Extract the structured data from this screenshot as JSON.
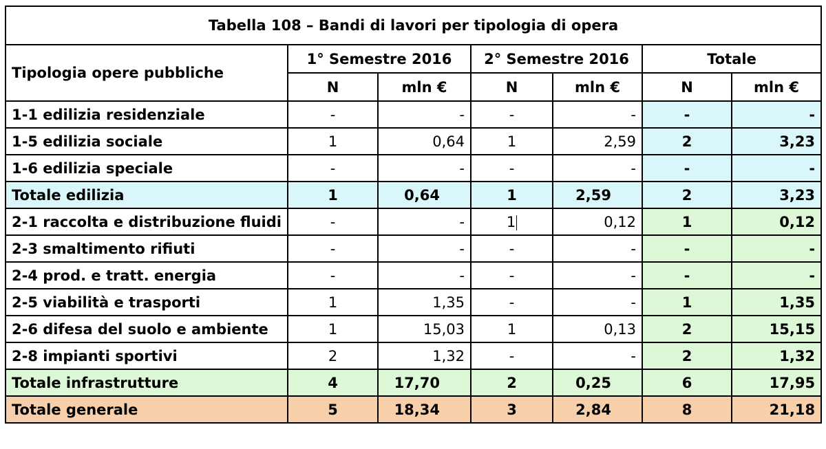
{
  "title": "Tabella 108 – Bandi di lavori per tipologia di opera",
  "header": {
    "tipologia": "Tipologia opere pubbliche",
    "sem1": "1° Semestre 2016",
    "sem2": "2° Semestre 2016",
    "totale": "Totale",
    "n": "N",
    "mln": "mln €"
  },
  "colors": {
    "edilizia": "#d9f7fb",
    "infrastrutture": "#dcf8d6",
    "generale": "#f8cfab"
  },
  "rows": [
    {
      "label": "1-1 edilizia residenziale",
      "s1n": "-",
      "s1m": "-",
      "s2n": "-",
      "s2m": "-",
      "tn": "-",
      "tm": "-"
    },
    {
      "label": "1-5 edilizia sociale",
      "s1n": "1",
      "s1m": "0,64",
      "s2n": "1",
      "s2m": "2,59",
      "tn": "2",
      "tm": "3,23"
    },
    {
      "label": "1-6 edilizia speciale",
      "s1n": "-",
      "s1m": "-",
      "s2n": "-",
      "s2m": "-",
      "tn": "-",
      "tm": "-"
    },
    {
      "label": "Totale edilizia",
      "s1n": "1",
      "s1m": "0,64",
      "s2n": "1",
      "s2m": "2,59",
      "tn": "2",
      "tm": "3,23"
    },
    {
      "label": "2-1 raccolta e distribuzione fluidi",
      "s1n": "-",
      "s1m": "-",
      "s2n": "1",
      "s2m": "0,12",
      "tn": "1",
      "tm": "0,12"
    },
    {
      "label": "2-3 smaltimento rifiuti",
      "s1n": "-",
      "s1m": "-",
      "s2n": "-",
      "s2m": "-",
      "tn": "-",
      "tm": "-"
    },
    {
      "label": "2-4 prod. e tratt. energia",
      "s1n": "-",
      "s1m": "-",
      "s2n": "-",
      "s2m": "-",
      "tn": "-",
      "tm": "-"
    },
    {
      "label": "2-5 viabilità e trasporti",
      "s1n": "1",
      "s1m": "1,35",
      "s2n": "-",
      "s2m": "-",
      "tn": "1",
      "tm": "1,35"
    },
    {
      "label": "2-6 difesa del suolo e ambiente",
      "s1n": "1",
      "s1m": "15,03",
      "s2n": "1",
      "s2m": "0,13",
      "tn": "2",
      "tm": "15,15"
    },
    {
      "label": "2-8 impianti sportivi",
      "s1n": "2",
      "s1m": "1,32",
      "s2n": "-",
      "s2m": "-",
      "tn": "2",
      "tm": "1,32"
    },
    {
      "label": "Totale infrastrutture",
      "s1n": "4",
      "s1m": "17,70",
      "s2n": "2",
      "s2m": "0,25",
      "tn": "6",
      "tm": "17,95"
    },
    {
      "label": "Totale generale",
      "s1n": "5",
      "s1m": "18,34",
      "s2n": "3",
      "s2m": "2,84",
      "tn": "8",
      "tm": "21,18"
    }
  ]
}
